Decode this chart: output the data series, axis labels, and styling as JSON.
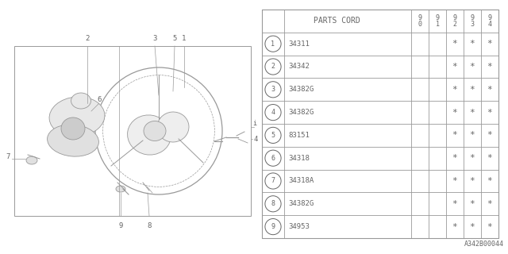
{
  "bg_color": "#ffffff",
  "line_color": "#999999",
  "text_color": "#666666",
  "catalog_id": "A342B00044",
  "col_header": "PARTS CORD",
  "year_cols": [
    "9\n0",
    "9\n1",
    "9\n2",
    "9\n3",
    "9\n4"
  ],
  "parts": [
    {
      "num": 1,
      "code": "34311",
      "years": [
        false,
        false,
        true,
        true,
        true
      ]
    },
    {
      "num": 2,
      "code": "34342",
      "years": [
        false,
        false,
        true,
        true,
        true
      ]
    },
    {
      "num": 3,
      "code": "34382G",
      "years": [
        false,
        false,
        true,
        true,
        true
      ]
    },
    {
      "num": 4,
      "code": "34382G",
      "years": [
        false,
        false,
        true,
        true,
        true
      ]
    },
    {
      "num": 5,
      "code": "83151",
      "years": [
        false,
        false,
        true,
        true,
        true
      ]
    },
    {
      "num": 6,
      "code": "34318",
      "years": [
        false,
        false,
        true,
        true,
        true
      ]
    },
    {
      "num": 7,
      "code": "34318A",
      "years": [
        false,
        false,
        true,
        true,
        true
      ]
    },
    {
      "num": 8,
      "code": "34382G",
      "years": [
        false,
        false,
        true,
        true,
        true
      ]
    },
    {
      "num": 9,
      "code": "34953",
      "years": [
        false,
        false,
        true,
        true,
        true
      ]
    }
  ]
}
